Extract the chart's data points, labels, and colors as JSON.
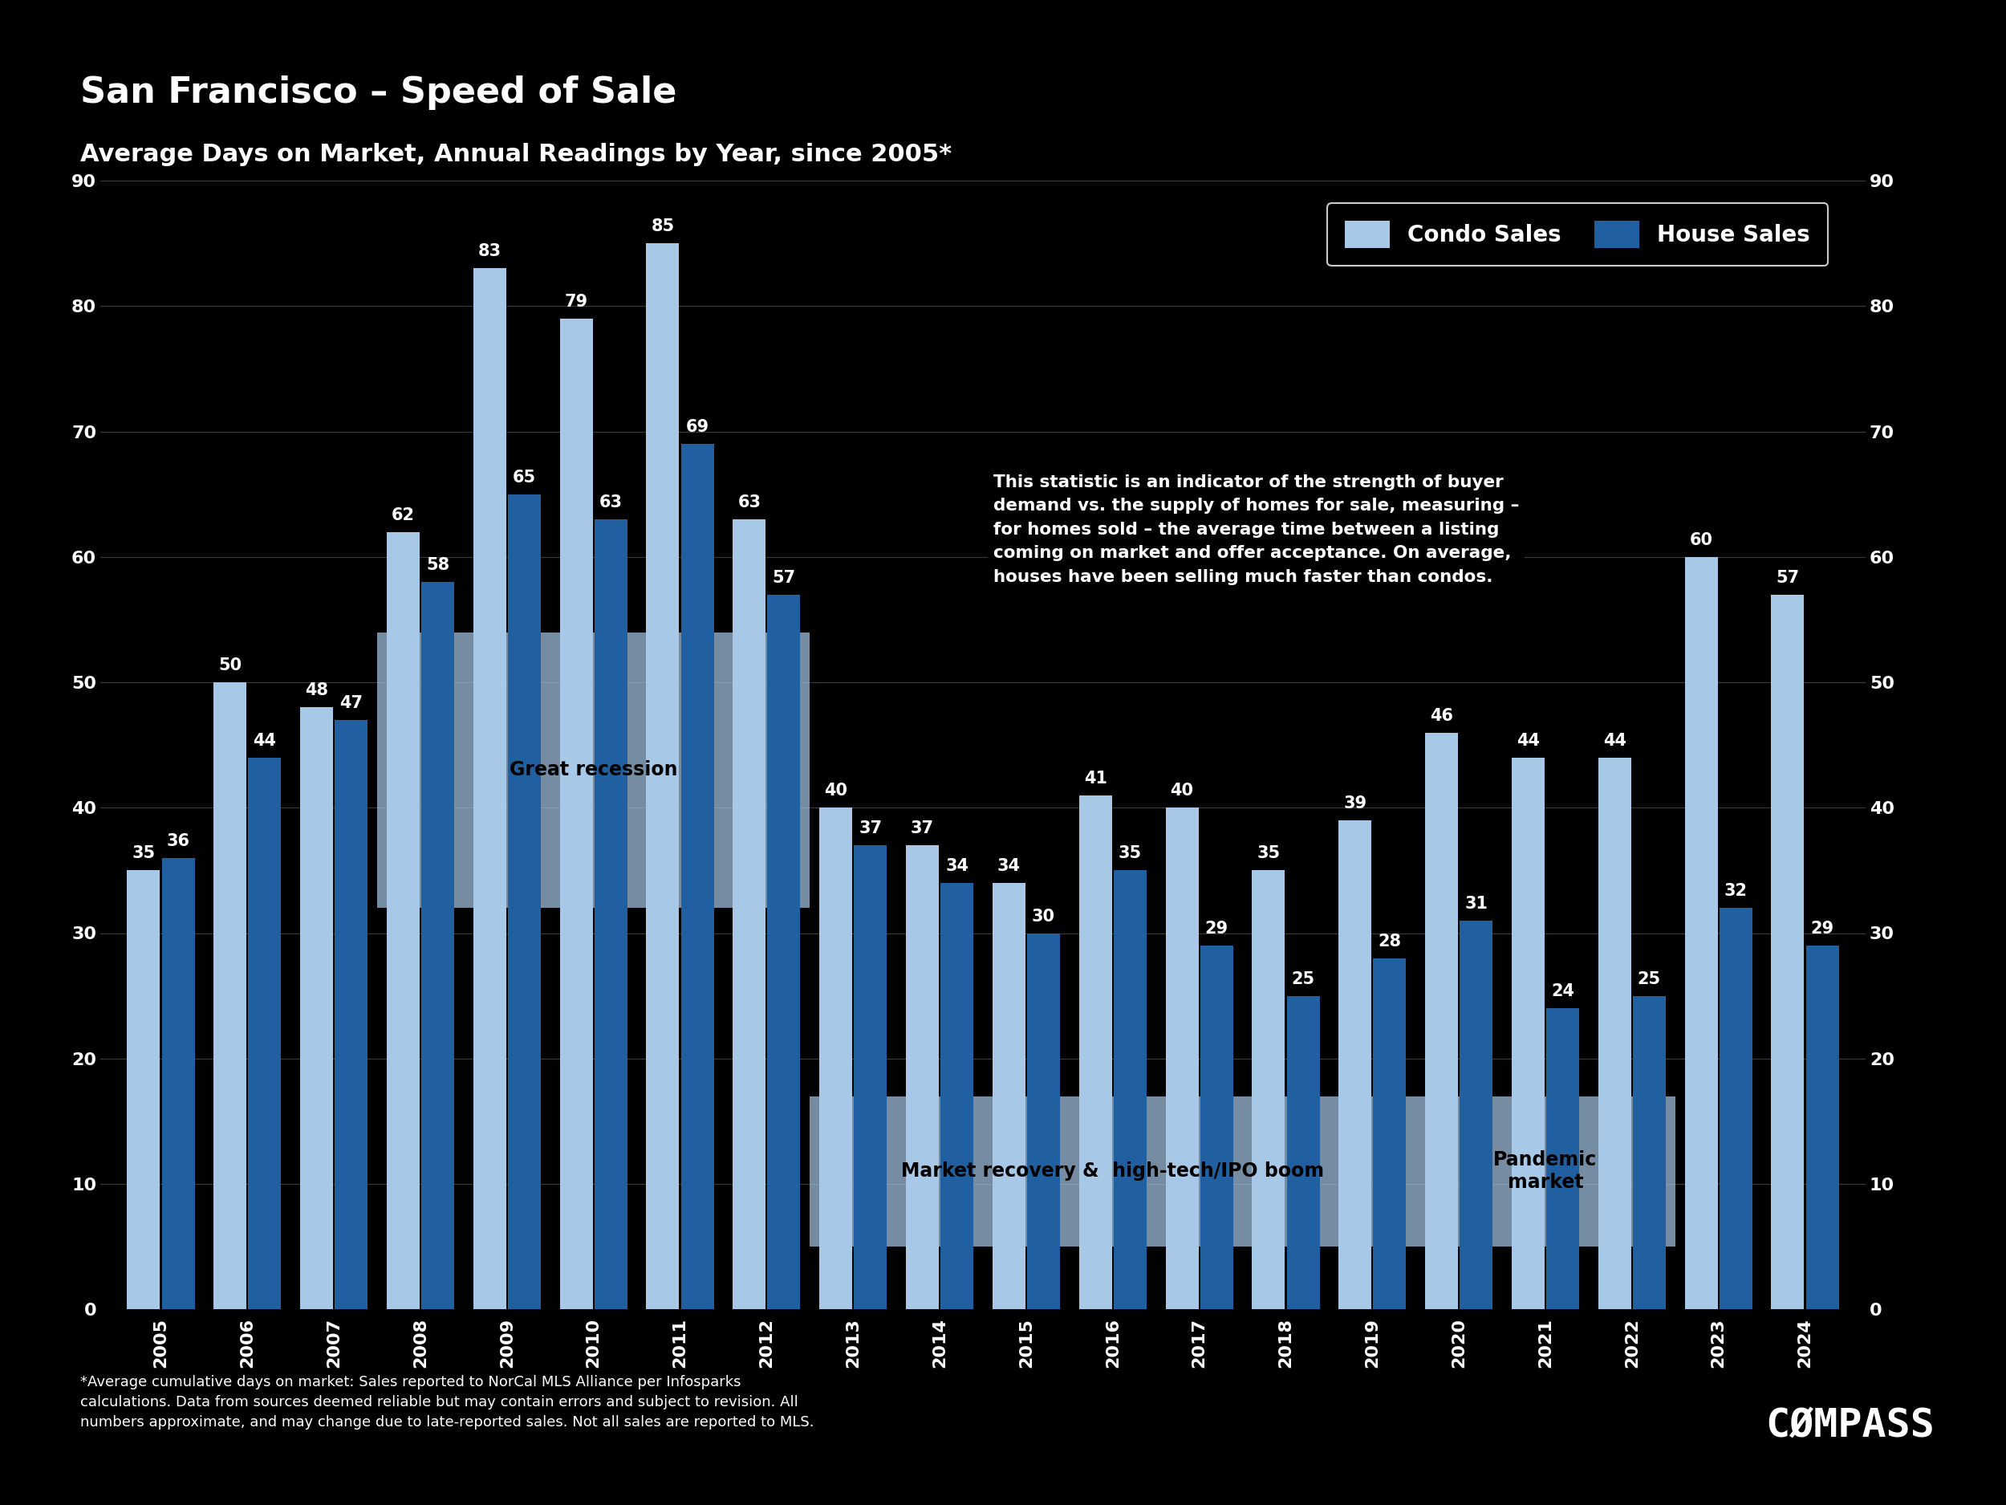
{
  "title_main": "San Francisco – Speed of Sale",
  "title_sub": "Average Days on Market, Annual Readings by Year, since 2005*",
  "years": [
    "2005",
    "2006",
    "2007",
    "2008",
    "2009",
    "2010",
    "2011",
    "2012",
    "2013",
    "2014",
    "2015",
    "2016",
    "2017",
    "2018",
    "2019",
    "2020",
    "2021",
    "2022",
    "2023",
    "2024"
  ],
  "condo_values": [
    35,
    50,
    48,
    62,
    83,
    79,
    85,
    63,
    40,
    37,
    34,
    41,
    40,
    35,
    39,
    46,
    44,
    44,
    60,
    57
  ],
  "house_values": [
    36,
    44,
    47,
    58,
    65,
    63,
    69,
    57,
    37,
    34,
    30,
    35,
    29,
    25,
    28,
    31,
    24,
    25,
    32,
    29
  ],
  "condo_color": "#a8c8e8",
  "house_color": "#2060a0",
  "background_color": "#000000",
  "text_color": "#ffffff",
  "bar_label_color_condo": "#ffffff",
  "bar_label_color_house": "#ffffff",
  "ylim": [
    0,
    90
  ],
  "yticks": [
    0,
    10,
    20,
    30,
    40,
    50,
    60,
    70,
    80,
    90
  ],
  "grid_color": "#555555",
  "annotation_pandemic": "Pandemic\nmarket",
  "annotation_text": "This statistic is an indicator of the strength of buyer\ndemand vs. the supply of homes for sale, measuring –\nfor homes sold – the average time between a listing\ncoming on market and offer acceptance. On average,\nhouses have been selling much faster than condos.",
  "footnote": "*Average cumulative days on market: Sales reported to NorCal MLS Alliance per Infosparks\ncalculations. Data from sources deemed reliable but may contain errors and subject to revision. All\nnumbers approximate, and may change due to late-reported sales. Not all sales are reported to MLS.",
  "legend_condo": "Condo Sales",
  "legend_house": "House Sales",
  "compass_text": "CØMPASS"
}
